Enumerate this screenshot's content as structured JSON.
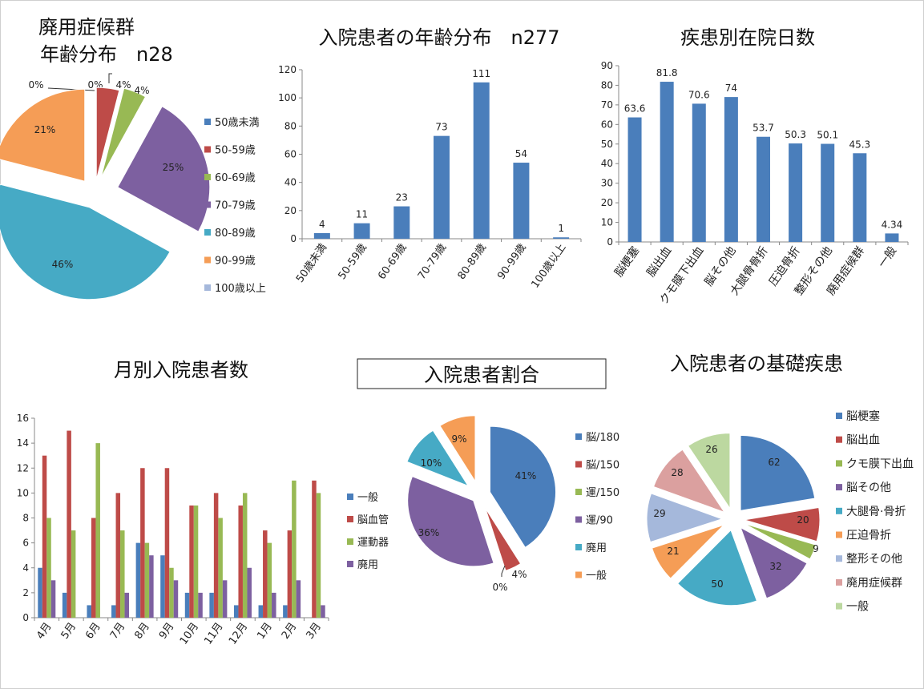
{
  "colors": {
    "blue": "#4a7ebb",
    "red": "#be4b48",
    "green": "#98b954",
    "purple": "#7d60a0",
    "teal": "#46aac5",
    "orange": "#f59d56",
    "lightblue": "#a5b8db",
    "pink": "#dba09f",
    "lightgreen": "#bcd8a0"
  },
  "chart_data": [
    {
      "id": "disuse-age-pie",
      "type": "pie",
      "title": "廃用症候群",
      "subtitle": "年齢分布　n28",
      "labels": [
        "50歳未満",
        "50-59歳",
        "60-69歳",
        "70-79歳",
        "80-89歳",
        "90-99歳",
        "100歳以上"
      ],
      "values": [
        0,
        4,
        4,
        25,
        46,
        21,
        0
      ],
      "data_labels": [
        "0%",
        "4%",
        "4%",
        "25%",
        "46%",
        "21%",
        "0%"
      ],
      "legend": "right"
    },
    {
      "id": "inpatient-age-bar",
      "type": "bar",
      "title": "入院患者の年齢分布　n277",
      "categories": [
        "50歳未満",
        "50-59歳",
        "60-69歳",
        "70-79歳",
        "80-89歳",
        "90-99歳",
        "100歳以上"
      ],
      "values": [
        4,
        11,
        23,
        73,
        111,
        54,
        1
      ],
      "ylim": [
        0,
        120
      ],
      "yticks": [
        0,
        20,
        40,
        60,
        80,
        100,
        120
      ]
    },
    {
      "id": "days-by-disease-bar",
      "type": "bar",
      "title": "疾患別在院日数",
      "categories": [
        "脳梗塞",
        "脳出血",
        "クモ膜下出血",
        "脳その他",
        "大腿骨骨折",
        "圧迫骨折",
        "整形その他",
        "廃用症候群",
        "一般"
      ],
      "values": [
        63.6,
        81.8,
        70.6,
        74,
        53.7,
        50.3,
        50.1,
        45.3,
        4.34
      ],
      "ylim": [
        0,
        90
      ],
      "yticks": [
        0,
        10,
        20,
        30,
        40,
        50,
        60,
        70,
        80,
        90
      ]
    },
    {
      "id": "monthly-patients-bar",
      "type": "bar",
      "title": "月別入院患者数",
      "categories": [
        "4月",
        "5月",
        "6月",
        "7月",
        "8月",
        "9月",
        "10月",
        "11月",
        "12月",
        "1月",
        "2月",
        "3月"
      ],
      "series": [
        {
          "name": "一般",
          "values": [
            4,
            2,
            1,
            1,
            6,
            5,
            2,
            2,
            1,
            1,
            1,
            0
          ]
        },
        {
          "name": "脳血管",
          "values": [
            13,
            15,
            8,
            10,
            12,
            12,
            9,
            10,
            9,
            7,
            7,
            11
          ]
        },
        {
          "name": "運動器",
          "values": [
            8,
            7,
            14,
            7,
            6,
            4,
            9,
            8,
            10,
            6,
            11,
            10
          ]
        },
        {
          "name": "廃用",
          "values": [
            3,
            0,
            0,
            2,
            5,
            3,
            2,
            3,
            4,
            2,
            3,
            1
          ]
        }
      ],
      "ylim": [
        0,
        16
      ],
      "yticks": [
        0,
        2,
        4,
        6,
        8,
        10,
        12,
        14,
        16
      ],
      "legend": "right"
    },
    {
      "id": "inpatient-ratio-pie",
      "type": "pie",
      "title": "入院患者割合",
      "labels": [
        "脳/180",
        "脳/150",
        "運/150",
        "運/90",
        "廃用",
        "一般"
      ],
      "values": [
        41,
        4,
        0,
        36,
        10,
        9
      ],
      "data_labels": [
        "41%",
        "4%",
        "0%",
        "36%",
        "10%",
        "9%"
      ],
      "legend": "right"
    },
    {
      "id": "underlying-disease-pie",
      "type": "pie",
      "title": "入院患者の基礎疾患",
      "labels": [
        "脳梗塞",
        "脳出血",
        "クモ膜下出血",
        "脳その他",
        "大腿骨骨折",
        "圧迫骨折",
        "整形その他",
        "廃用症候群",
        "一般"
      ],
      "legend_labels": [
        "脳梗塞",
        "脳出血",
        "クモ膜下出血",
        "脳その他",
        "大腿骨·骨折",
        "圧迫骨折",
        "整形その他",
        "廃用症候群",
        "一般"
      ],
      "values": [
        62,
        20,
        9,
        32,
        50,
        21,
        29,
        28,
        26
      ],
      "data_labels": [
        "62",
        "20",
        "9",
        "32",
        "50",
        "21",
        "29",
        "28",
        "26"
      ],
      "legend": "right"
    }
  ]
}
